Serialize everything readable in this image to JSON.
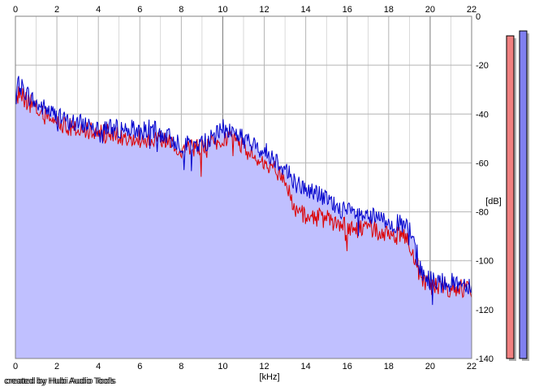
{
  "chart_data": {
    "type": "area",
    "title": "",
    "xlabel": "[kHz]",
    "ylabel": "[dB]",
    "xlim": [
      0,
      22
    ],
    "ylim": [
      -140,
      0
    ],
    "x_ticks": [
      "0",
      "2",
      "4",
      "6",
      "8",
      "10",
      "12",
      "14",
      "16",
      "18",
      "20",
      "22"
    ],
    "y_ticks": [
      "0",
      "-20",
      "-40",
      "-60",
      "-80",
      "-100",
      "-120",
      "-140"
    ],
    "grid": true,
    "series": [
      {
        "color": "#0000cc",
        "x": [
          0,
          0.2,
          0.5,
          1,
          1.5,
          2,
          2.5,
          3,
          3.5,
          4,
          4.5,
          5,
          5.5,
          6,
          6.5,
          7,
          7.5,
          8,
          8.5,
          9,
          9.5,
          10,
          10.5,
          11,
          11.5,
          12,
          12.5,
          13,
          13.5,
          14,
          14.5,
          15,
          15.5,
          16,
          16.5,
          17,
          17.5,
          18,
          18.5,
          19,
          19.3,
          19.6,
          20,
          20.5,
          21,
          21.5,
          22
        ],
        "y": [
          -30,
          -28,
          -31,
          -36,
          -38,
          -41,
          -43,
          -44,
          -44,
          -45,
          -45,
          -46,
          -46,
          -47,
          -46,
          -48,
          -50,
          -52,
          -53,
          -52,
          -50,
          -46,
          -47,
          -50,
          -53,
          -55,
          -58,
          -62,
          -68,
          -71,
          -72,
          -75,
          -78,
          -80,
          -81,
          -82,
          -83,
          -84,
          -85,
          -87,
          -95,
          -105,
          -108,
          -108,
          -109,
          -109,
          -110
        ]
      },
      {
        "color": "#dd0000",
        "x": [
          0,
          0.2,
          0.5,
          1,
          1.5,
          2,
          2.5,
          3,
          3.5,
          4,
          4.5,
          5,
          5.5,
          6,
          6.5,
          7,
          7.5,
          8,
          8.5,
          9,
          9.5,
          10,
          10.5,
          11,
          11.5,
          12,
          12.5,
          13,
          13.5,
          14,
          14.5,
          15,
          15.5,
          16,
          16.5,
          17,
          17.5,
          18,
          18.5,
          19,
          19.3,
          19.6,
          20,
          20.5,
          21,
          21.5,
          22
        ],
        "y": [
          -33,
          -32,
          -34,
          -38,
          -41,
          -43,
          -45,
          -46,
          -47,
          -48,
          -48,
          -49,
          -49,
          -50,
          -50,
          -51,
          -52,
          -54,
          -54,
          -53,
          -51,
          -50,
          -51,
          -54,
          -57,
          -60,
          -63,
          -67,
          -80,
          -82,
          -82,
          -83,
          -85,
          -86,
          -87,
          -87,
          -88,
          -89,
          -90,
          -92,
          -100,
          -108,
          -110,
          -110,
          -111,
          -111,
          -112
        ]
      }
    ],
    "level_meters": [
      {
        "color": "#f08080",
        "level_db": -8
      },
      {
        "color": "#8080f0",
        "level_db": -6
      }
    ]
  },
  "credit": "created by Hubi Audio Tools",
  "colors": {
    "area_fill": "#c0c0ff",
    "grid": "#b4b4b4",
    "major_grid": "#7a7a7a",
    "plot_background": "#ffffff"
  }
}
